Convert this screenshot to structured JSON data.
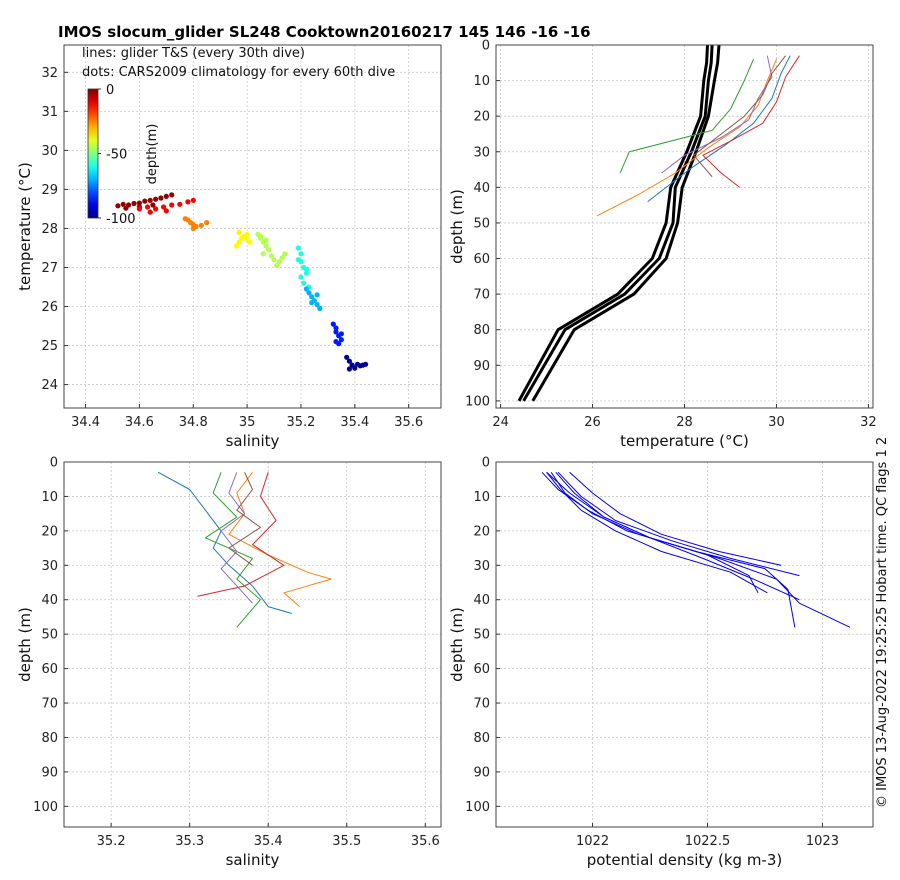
{
  "figure": {
    "title": "IMOS slocum_glider SL248 Cooktown20160217 145  146  -16  -16",
    "legend_lines": "lines: glider T&S (every 30th dive)",
    "legend_dots": "dots: CARS2009 climatology for every 60th dive",
    "side_note": "© IMOS 13-Aug-2022 19:25:25 Hobart time. QC flags 1  2"
  },
  "colorbar": {
    "label": "depth(m)",
    "ticks": [
      "0",
      "-50",
      "-100"
    ],
    "range": [
      -100,
      0
    ],
    "colormap": "jet"
  },
  "chart_data": [
    {
      "type": "scatter",
      "panel": "top-left",
      "xlabel": "salinity",
      "ylabel": "temperature (°C)",
      "xlim": [
        34.32,
        35.72
      ],
      "ylim": [
        23.4,
        32.7
      ],
      "xticks": [
        34.4,
        34.6,
        34.8,
        35.0,
        35.2,
        35.4,
        35.6
      ],
      "xtick_labels": [
        "34.4",
        "34.6",
        "34.8",
        "35",
        "35.2",
        "35.4",
        "35.6"
      ],
      "yticks": [
        24,
        25,
        26,
        27,
        28,
        29,
        30,
        31,
        32
      ],
      "ytick_labels": [
        "24",
        "25",
        "26",
        "27",
        "28",
        "29",
        "30",
        "31",
        "32"
      ],
      "grid": true,
      "dot_clusters": [
        {
          "depth": -2,
          "points": [
            [
              34.52,
              28.58
            ],
            [
              34.54,
              28.62
            ],
            [
              34.56,
              28.6
            ],
            [
              34.58,
              28.64
            ],
            [
              34.6,
              28.65
            ],
            [
              34.62,
              28.7
            ],
            [
              34.64,
              28.72
            ],
            [
              34.66,
              28.75
            ],
            [
              34.68,
              28.78
            ],
            [
              34.7,
              28.82
            ],
            [
              34.72,
              28.86
            ],
            [
              34.55,
              28.52
            ],
            [
              34.6,
              28.55
            ],
            [
              34.65,
              28.6
            ]
          ]
        },
        {
          "depth": -12,
          "points": [
            [
              34.6,
              28.5
            ],
            [
              34.63,
              28.55
            ],
            [
              34.66,
              28.5
            ],
            [
              34.69,
              28.55
            ],
            [
              34.72,
              28.6
            ],
            [
              34.75,
              28.62
            ],
            [
              34.78,
              28.68
            ],
            [
              34.8,
              28.72
            ],
            [
              34.64,
              28.42
            ],
            [
              34.7,
              28.45
            ]
          ]
        },
        {
          "depth": -25,
          "points": [
            [
              34.78,
              28.22
            ],
            [
              34.79,
              28.15
            ],
            [
              34.8,
              28.1
            ],
            [
              34.81,
              28.05
            ],
            [
              34.83,
              28.08
            ],
            [
              34.85,
              28.15
            ],
            [
              34.8,
              28.0
            ],
            [
              34.77,
              28.25
            ]
          ]
        },
        {
          "depth": -37,
          "points": [
            [
              34.96,
              27.55
            ],
            [
              34.97,
              27.65
            ],
            [
              34.98,
              27.75
            ],
            [
              34.99,
              27.8
            ],
            [
              35.0,
              27.72
            ],
            [
              35.01,
              27.65
            ],
            [
              35.0,
              27.85
            ],
            [
              34.97,
              27.9
            ]
          ]
        },
        {
          "depth": -45,
          "points": [
            [
              35.04,
              27.85
            ],
            [
              35.05,
              27.75
            ],
            [
              35.06,
              27.65
            ],
            [
              35.07,
              27.55
            ],
            [
              35.08,
              27.45
            ],
            [
              35.06,
              27.35
            ],
            [
              35.09,
              27.3
            ],
            [
              35.1,
              27.2
            ],
            [
              35.12,
              27.15
            ],
            [
              35.11,
              27.05
            ],
            [
              35.13,
              27.25
            ],
            [
              35.05,
              27.8
            ],
            [
              35.07,
              27.7
            ],
            [
              35.14,
              27.35
            ]
          ]
        },
        {
          "depth": -60,
          "points": [
            [
              35.19,
              27.5
            ],
            [
              35.2,
              27.35
            ],
            [
              35.2,
              27.15
            ],
            [
              35.21,
              27.0
            ],
            [
              35.22,
              26.85
            ],
            [
              35.2,
              26.75
            ],
            [
              35.21,
              26.6
            ],
            [
              35.23,
              26.5
            ],
            [
              35.22,
              26.95
            ],
            [
              35.19,
              27.2
            ]
          ]
        },
        {
          "depth": -70,
          "points": [
            [
              35.22,
              26.45
            ],
            [
              35.23,
              26.35
            ],
            [
              35.24,
              26.25
            ],
            [
              35.25,
              26.15
            ],
            [
              35.26,
              26.05
            ],
            [
              35.27,
              25.95
            ],
            [
              35.26,
              26.3
            ],
            [
              35.24,
              26.1
            ]
          ]
        },
        {
          "depth": -85,
          "points": [
            [
              35.32,
              25.55
            ],
            [
              35.33,
              25.45
            ],
            [
              35.33,
              25.35
            ],
            [
              35.34,
              25.25
            ],
            [
              35.35,
              25.15
            ],
            [
              35.34,
              25.05
            ],
            [
              35.33,
              25.1
            ],
            [
              35.35,
              25.3
            ]
          ]
        },
        {
          "depth": -98,
          "points": [
            [
              35.37,
              24.7
            ],
            [
              35.38,
              24.6
            ],
            [
              35.39,
              24.5
            ],
            [
              35.4,
              24.42
            ],
            [
              35.41,
              24.52
            ],
            [
              35.42,
              24.48
            ],
            [
              35.43,
              24.5
            ],
            [
              35.44,
              24.52
            ],
            [
              35.38,
              24.4
            ]
          ]
        }
      ]
    },
    {
      "type": "line",
      "panel": "top-right",
      "xlabel": "temperature (°C)",
      "ylabel": "depth (m)",
      "xlim": [
        23.9,
        32.1
      ],
      "ylim": [
        102,
        0
      ],
      "xticks": [
        24,
        26,
        28,
        30,
        32
      ],
      "xtick_labels": [
        "24",
        "26",
        "28",
        "30",
        "32"
      ],
      "yticks": [
        0,
        10,
        20,
        30,
        40,
        50,
        60,
        70,
        80,
        90,
        100
      ],
      "ytick_labels": [
        "0",
        "10",
        "20",
        "30",
        "40",
        "50",
        "60",
        "70",
        "80",
        "90",
        "100"
      ],
      "grid": true,
      "climatology_series": [
        {
          "name": "",
          "x": [
            28.75,
            28.72,
            28.65,
            28.52,
            28.25,
            27.95,
            27.85,
            27.6,
            26.9,
            25.6,
            24.7
          ],
          "y": [
            0,
            5,
            10,
            20,
            30,
            40,
            50,
            60,
            70,
            80,
            100
          ]
        },
        {
          "name": "",
          "x": [
            28.6,
            28.58,
            28.52,
            28.45,
            28.15,
            27.8,
            27.75,
            27.45,
            26.7,
            25.4,
            24.5
          ],
          "y": [
            0,
            5,
            10,
            20,
            30,
            40,
            50,
            60,
            70,
            80,
            100
          ]
        },
        {
          "name": "",
          "x": [
            28.5,
            28.48,
            28.42,
            28.35,
            28.05,
            27.7,
            27.6,
            27.3,
            26.55,
            25.25,
            24.4
          ],
          "y": [
            0,
            5,
            10,
            20,
            30,
            40,
            50,
            60,
            70,
            80,
            100
          ]
        }
      ],
      "glider_series": [
        {
          "name": "",
          "x": [
            30.3,
            30.1,
            29.9,
            29.5,
            28.9,
            28.1,
            27.6,
            27.2
          ],
          "y": [
            3,
            8,
            15,
            22,
            28,
            35,
            40,
            44
          ]
        },
        {
          "name": "",
          "x": [
            30.0,
            29.8,
            29.6,
            29.2,
            28.5,
            27.8,
            27.0,
            26.1
          ],
          "y": [
            4,
            10,
            17,
            23,
            29,
            36,
            42,
            48
          ]
        },
        {
          "name": "",
          "x": [
            29.5,
            29.3,
            29.0,
            28.6,
            27.7,
            26.8,
            26.6
          ],
          "y": [
            4,
            10,
            18,
            24,
            27,
            30,
            36
          ]
        },
        {
          "name": "",
          "x": [
            30.5,
            30.2,
            30.0,
            29.7,
            29.0,
            28.4,
            28.8,
            29.2
          ],
          "y": [
            3,
            9,
            16,
            22,
            27,
            31,
            36,
            40
          ]
        },
        {
          "name": "",
          "x": [
            29.8,
            29.9,
            29.6,
            29.4,
            28.8,
            28.0,
            27.5
          ],
          "y": [
            3,
            9,
            15,
            21,
            26,
            31,
            36
          ]
        },
        {
          "name": "",
          "x": [
            30.2,
            29.9,
            29.7,
            29.3,
            28.7,
            28.2,
            28.6
          ],
          "y": [
            3,
            8,
            14,
            20,
            26,
            31,
            37
          ]
        }
      ]
    },
    {
      "type": "line",
      "panel": "bottom-left",
      "xlabel": "salinity",
      "ylabel": "depth (m)",
      "xlim": [
        35.14,
        35.62
      ],
      "ylim": [
        106,
        0
      ],
      "xticks": [
        35.2,
        35.3,
        35.4,
        35.5,
        35.6
      ],
      "xtick_labels": [
        "35.2",
        "35.3",
        "35.4",
        "35.5",
        "35.6"
      ],
      "yticks": [
        0,
        10,
        20,
        30,
        40,
        50,
        60,
        70,
        80,
        90,
        100
      ],
      "ytick_labels": [
        "0",
        "10",
        "20",
        "30",
        "40",
        "50",
        "60",
        "70",
        "80",
        "90",
        "100"
      ],
      "grid": true,
      "glider_series": [
        {
          "name": "",
          "x": [
            35.26,
            35.3,
            35.32,
            35.34,
            35.33,
            35.35,
            35.38,
            35.4,
            35.43
          ],
          "y": [
            3,
            8,
            14,
            20,
            25,
            30,
            36,
            42,
            44
          ]
        },
        {
          "name": "",
          "x": [
            35.38,
            35.36,
            35.37,
            35.35,
            35.4,
            35.45,
            35.48,
            35.42,
            35.44
          ],
          "y": [
            3,
            9,
            15,
            21,
            27,
            32,
            34,
            38,
            42
          ]
        },
        {
          "name": "",
          "x": [
            35.34,
            35.33,
            35.36,
            35.32,
            35.38,
            35.36,
            35.39,
            35.36
          ],
          "y": [
            3,
            9,
            16,
            22,
            28,
            34,
            40,
            48
          ]
        },
        {
          "name": "",
          "x": [
            35.4,
            35.39,
            35.41,
            35.38,
            35.42,
            35.37,
            35.31
          ],
          "y": [
            3,
            10,
            17,
            24,
            30,
            36,
            39
          ]
        },
        {
          "name": "",
          "x": [
            35.36,
            35.35,
            35.37,
            35.34,
            35.36,
            35.34,
            35.38
          ],
          "y": [
            3,
            9,
            15,
            20,
            26,
            31,
            41
          ]
        },
        {
          "name": "",
          "x": [
            35.37,
            35.38,
            35.36,
            35.39,
            35.35,
            35.38
          ],
          "y": [
            3,
            8,
            14,
            19,
            25,
            30
          ]
        }
      ]
    },
    {
      "type": "line",
      "panel": "bottom-right",
      "xlabel": "potential density (kg m-3)",
      "ylabel": "depth (m)",
      "xlim": [
        1021.58,
        1023.22
      ],
      "ylim": [
        106,
        0
      ],
      "xticks": [
        1022,
        1022.5,
        1023
      ],
      "xtick_labels": [
        "1022",
        "1022.5",
        "1023"
      ],
      "yticks": [
        0,
        10,
        20,
        30,
        40,
        50,
        60,
        70,
        80,
        90,
        100
      ],
      "ytick_labels": [
        "0",
        "10",
        "20",
        "30",
        "40",
        "50",
        "60",
        "70",
        "80",
        "90",
        "100"
      ],
      "grid": true,
      "glider_series": [
        {
          "name": "",
          "x": [
            1021.78,
            1021.85,
            1021.98,
            1022.15,
            1022.45,
            1022.75,
            1022.85,
            1022.88
          ],
          "y": [
            3,
            8,
            14,
            20,
            26,
            31,
            37,
            48
          ]
        },
        {
          "name": "",
          "x": [
            1021.8,
            1021.9,
            1022.05,
            1022.25,
            1022.55,
            1022.8,
            1022.9,
            1023.12
          ],
          "y": [
            3,
            9,
            16,
            22,
            28,
            34,
            41,
            48
          ]
        },
        {
          "name": "",
          "x": [
            1021.82,
            1021.88,
            1022.0,
            1022.2,
            1022.5,
            1022.68,
            1022.72
          ],
          "y": [
            3,
            9,
            15,
            21,
            27,
            33,
            38
          ]
        },
        {
          "name": "",
          "x": [
            1021.85,
            1021.95,
            1022.1,
            1022.35,
            1022.6,
            1022.9
          ],
          "y": [
            3,
            10,
            17,
            23,
            28,
            33
          ]
        },
        {
          "name": "",
          "x": [
            1021.9,
            1022.0,
            1022.12,
            1022.3,
            1022.55,
            1022.82
          ],
          "y": [
            3,
            9,
            15,
            21,
            26,
            30
          ]
        },
        {
          "name": "",
          "x": [
            1021.84,
            1021.92,
            1022.05,
            1022.25,
            1022.48,
            1022.7,
            1022.9
          ],
          "y": [
            3,
            9,
            16,
            22,
            28,
            34,
            40
          ]
        },
        {
          "name": "",
          "x": [
            1021.8,
            1021.86,
            1021.95,
            1022.1,
            1022.3,
            1022.6,
            1022.76
          ],
          "y": [
            3,
            8,
            14,
            20,
            26,
            32,
            38
          ]
        }
      ]
    }
  ],
  "colors": {
    "glider_lines": [
      "#1f77b4",
      "#ff7f0e",
      "#2ca02c",
      "#d62728",
      "#9467bd",
      "#8c564b",
      "#bcbd22",
      "#17becf",
      "#e377c2",
      "#7f7f7f"
    ],
    "climatology": "#000000",
    "density": "#0000ee",
    "grid": "#c8c8c8"
  }
}
